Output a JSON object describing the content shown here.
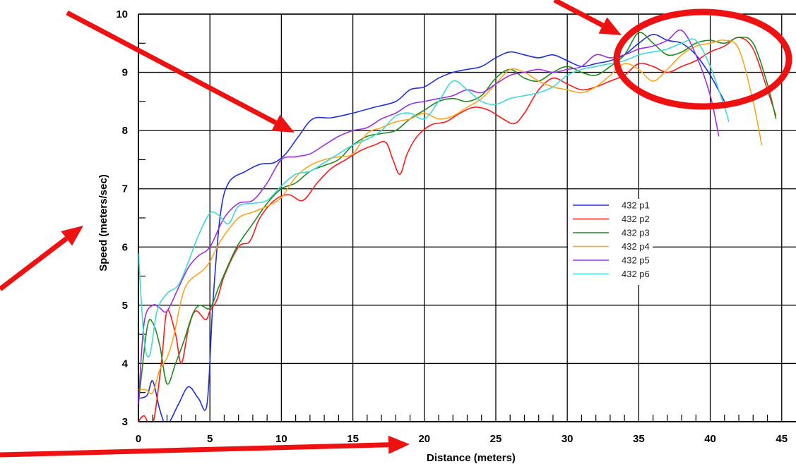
{
  "chart_data": {
    "type": "line",
    "title": "",
    "xlabel": "Distance (meters)",
    "ylabel": "Speed (meters/sec)",
    "xlim": [
      0,
      46
    ],
    "ylim": [
      3,
      10
    ],
    "x_ticks": [
      0,
      5,
      10,
      15,
      20,
      25,
      30,
      35,
      40,
      45
    ],
    "y_ticks": [
      3,
      4,
      5,
      6,
      7,
      8,
      9,
      10
    ],
    "grid": true,
    "legend_position": "center-right",
    "series": [
      {
        "name": "432 p1",
        "color": "#1f2fe0",
        "points": [
          [
            0,
            3.4
          ],
          [
            0.6,
            3.45
          ],
          [
            1,
            3.7
          ],
          [
            1.5,
            3.2
          ],
          [
            2,
            2.95
          ],
          [
            2.8,
            3.3
          ],
          [
            3.5,
            3.6
          ],
          [
            4.2,
            3.4
          ],
          [
            4.8,
            3.3
          ],
          [
            5.2,
            5.0
          ],
          [
            5.7,
            6.5
          ],
          [
            6.3,
            7.1
          ],
          [
            7.5,
            7.3
          ],
          [
            8.5,
            7.42
          ],
          [
            9.5,
            7.45
          ],
          [
            10.3,
            7.6
          ],
          [
            11.2,
            7.9
          ],
          [
            12.2,
            8.2
          ],
          [
            13.5,
            8.22
          ],
          [
            15,
            8.3
          ],
          [
            16.5,
            8.4
          ],
          [
            18,
            8.5
          ],
          [
            19,
            8.7
          ],
          [
            20,
            8.75
          ],
          [
            21,
            8.9
          ],
          [
            22,
            9.0
          ],
          [
            23,
            9.05
          ],
          [
            24,
            9.1
          ],
          [
            25,
            9.25
          ],
          [
            26,
            9.35
          ],
          [
            27,
            9.3
          ],
          [
            28,
            9.25
          ],
          [
            29,
            9.3
          ],
          [
            30,
            9.2
          ],
          [
            31,
            9.1
          ],
          [
            32,
            9.15
          ],
          [
            33,
            9.2
          ],
          [
            34,
            9.3
          ],
          [
            35,
            9.5
          ],
          [
            36,
            9.65
          ],
          [
            37,
            9.55
          ],
          [
            38,
            9.5
          ],
          [
            39,
            9.3
          ],
          [
            40,
            8.95
          ],
          [
            41,
            8.5
          ]
        ]
      },
      {
        "name": "432 p2",
        "color": "#ff1a1a",
        "points": [
          [
            0,
            3.0
          ],
          [
            0.4,
            3.1
          ],
          [
            1,
            2.95
          ],
          [
            1.6,
            4.0
          ],
          [
            2,
            4.9
          ],
          [
            2.6,
            4.5
          ],
          [
            3,
            4.0
          ],
          [
            3.5,
            4.6
          ],
          [
            4,
            4.9
          ],
          [
            4.7,
            4.75
          ],
          [
            5,
            4.9
          ],
          [
            5.5,
            5.1
          ],
          [
            6,
            5.5
          ],
          [
            7,
            6.0
          ],
          [
            7.8,
            6.1
          ],
          [
            8.5,
            6.5
          ],
          [
            9.5,
            6.8
          ],
          [
            10.5,
            6.9
          ],
          [
            11.5,
            6.8
          ],
          [
            12.5,
            7.1
          ],
          [
            13.5,
            7.35
          ],
          [
            14.5,
            7.5
          ],
          [
            15.5,
            7.65
          ],
          [
            16.5,
            7.75
          ],
          [
            17.3,
            7.8
          ],
          [
            17.8,
            7.5
          ],
          [
            18.3,
            7.25
          ],
          [
            18.8,
            7.6
          ],
          [
            19.5,
            7.9
          ],
          [
            20.5,
            8.1
          ],
          [
            21.5,
            8.15
          ],
          [
            22.5,
            8.3
          ],
          [
            23.5,
            8.4
          ],
          [
            24.5,
            8.35
          ],
          [
            25.5,
            8.2
          ],
          [
            26.3,
            8.12
          ],
          [
            27,
            8.3
          ],
          [
            28,
            8.7
          ],
          [
            29,
            8.9
          ],
          [
            30,
            8.8
          ],
          [
            31,
            8.7
          ],
          [
            32,
            8.75
          ],
          [
            33,
            8.85
          ],
          [
            34,
            8.95
          ],
          [
            35,
            9.15
          ],
          [
            36,
            9.1
          ],
          [
            37,
            9.0
          ],
          [
            38,
            9.1
          ],
          [
            39,
            9.2
          ],
          [
            40,
            9.35
          ],
          [
            41,
            9.45
          ],
          [
            42,
            9.6
          ],
          [
            43,
            9.4
          ],
          [
            44,
            8.7
          ],
          [
            44.6,
            8.25
          ]
        ]
      },
      {
        "name": "432 p3",
        "color": "#1e8c1e",
        "points": [
          [
            0,
            3.3
          ],
          [
            0.6,
            4.6
          ],
          [
            1,
            4.7
          ],
          [
            1.5,
            4.3
          ],
          [
            2,
            3.65
          ],
          [
            2.6,
            4.0
          ],
          [
            3.2,
            4.4
          ],
          [
            3.8,
            4.85
          ],
          [
            4.3,
            5.0
          ],
          [
            5,
            4.95
          ],
          [
            5.6,
            5.3
          ],
          [
            6.3,
            5.7
          ],
          [
            7,
            6.05
          ],
          [
            8,
            6.4
          ],
          [
            9,
            6.75
          ],
          [
            10,
            7.0
          ],
          [
            11,
            7.1
          ],
          [
            12,
            7.3
          ],
          [
            13,
            7.4
          ],
          [
            14,
            7.5
          ],
          [
            15,
            7.75
          ],
          [
            16,
            7.9
          ],
          [
            17,
            7.95
          ],
          [
            18,
            8.0
          ],
          [
            19,
            8.2
          ],
          [
            20,
            8.35
          ],
          [
            21,
            8.5
          ],
          [
            22,
            8.55
          ],
          [
            23,
            8.5
          ],
          [
            24,
            8.6
          ],
          [
            25,
            8.9
          ],
          [
            26,
            9.05
          ],
          [
            27,
            8.9
          ],
          [
            28,
            8.85
          ],
          [
            29,
            9.0
          ],
          [
            30,
            9.1
          ],
          [
            31,
            9.0
          ],
          [
            32,
            8.95
          ],
          [
            33,
            9.1
          ],
          [
            34,
            9.3
          ],
          [
            35,
            9.68
          ],
          [
            36,
            9.5
          ],
          [
            37,
            9.3
          ],
          [
            38,
            9.35
          ],
          [
            39,
            9.5
          ],
          [
            40,
            9.55
          ],
          [
            41,
            9.5
          ],
          [
            42,
            9.6
          ],
          [
            43,
            9.5
          ],
          [
            44,
            8.8
          ],
          [
            44.6,
            8.2
          ]
        ]
      },
      {
        "name": "432 p4",
        "color": "#ffa31a",
        "points": [
          [
            0,
            3.55
          ],
          [
            0.5,
            3.55
          ],
          [
            1,
            3.5
          ],
          [
            1.5,
            3.9
          ],
          [
            2,
            4.1
          ],
          [
            2.5,
            4.5
          ],
          [
            3,
            5.1
          ],
          [
            3.5,
            5.4
          ],
          [
            4.5,
            5.6
          ],
          [
            5,
            5.75
          ],
          [
            5.5,
            6.0
          ],
          [
            6,
            6.2
          ],
          [
            7,
            6.5
          ],
          [
            8,
            6.6
          ],
          [
            9,
            6.7
          ],
          [
            10,
            6.85
          ],
          [
            11,
            7.2
          ],
          [
            12,
            7.4
          ],
          [
            13,
            7.5
          ],
          [
            14,
            7.55
          ],
          [
            15,
            7.6
          ],
          [
            16,
            7.95
          ],
          [
            17,
            8.05
          ],
          [
            18,
            8.15
          ],
          [
            19,
            8.2
          ],
          [
            20,
            8.3
          ],
          [
            21,
            8.2
          ],
          [
            22,
            8.25
          ],
          [
            23,
            8.4
          ],
          [
            24,
            8.55
          ],
          [
            25,
            8.8
          ],
          [
            26,
            9.05
          ],
          [
            27,
            9.0
          ],
          [
            28,
            8.85
          ],
          [
            29,
            8.75
          ],
          [
            30,
            8.7
          ],
          [
            31,
            8.65
          ],
          [
            32,
            8.75
          ],
          [
            33,
            8.95
          ],
          [
            34,
            9.15
          ],
          [
            35,
            9.05
          ],
          [
            36,
            8.85
          ],
          [
            37,
            9.05
          ],
          [
            38,
            9.3
          ],
          [
            39,
            9.45
          ],
          [
            40,
            9.5
          ],
          [
            41,
            9.55
          ],
          [
            42,
            9.4
          ],
          [
            43,
            8.5
          ],
          [
            43.6,
            7.75
          ]
        ]
      },
      {
        "name": "432 p5",
        "color": "#9b30e0",
        "points": [
          [
            0,
            3.3
          ],
          [
            0.4,
            4.7
          ],
          [
            1,
            5.0
          ],
          [
            1.5,
            4.95
          ],
          [
            2,
            4.9
          ],
          [
            2.8,
            5.3
          ],
          [
            3.5,
            5.65
          ],
          [
            4.2,
            5.85
          ],
          [
            5,
            6.0
          ],
          [
            6,
            6.5
          ],
          [
            7,
            6.75
          ],
          [
            8,
            6.8
          ],
          [
            9,
            7.1
          ],
          [
            10,
            7.5
          ],
          [
            11,
            7.55
          ],
          [
            12,
            7.6
          ],
          [
            13,
            7.75
          ],
          [
            14,
            7.9
          ],
          [
            15,
            8.0
          ],
          [
            16,
            8.05
          ],
          [
            17,
            8.2
          ],
          [
            18,
            8.3
          ],
          [
            19,
            8.45
          ],
          [
            20,
            8.5
          ],
          [
            21,
            8.55
          ],
          [
            22,
            8.6
          ],
          [
            23,
            8.7
          ],
          [
            24,
            8.65
          ],
          [
            25,
            8.8
          ],
          [
            26,
            8.95
          ],
          [
            27,
            9.0
          ],
          [
            28,
            9.05
          ],
          [
            29,
            9.0
          ],
          [
            30,
            9.05
          ],
          [
            31,
            9.1
          ],
          [
            32,
            9.3
          ],
          [
            33,
            9.25
          ],
          [
            34,
            9.3
          ],
          [
            35,
            9.4
          ],
          [
            36,
            9.45
          ],
          [
            37,
            9.55
          ],
          [
            38,
            9.72
          ],
          [
            39,
            9.3
          ],
          [
            40,
            8.6
          ],
          [
            40.6,
            7.9
          ]
        ]
      },
      {
        "name": "432 p6",
        "color": "#3fd8d8",
        "points": [
          [
            0,
            5.9
          ],
          [
            0.4,
            4.4
          ],
          [
            0.8,
            4.15
          ],
          [
            1.3,
            4.9
          ],
          [
            2,
            5.2
          ],
          [
            2.8,
            5.35
          ],
          [
            3.5,
            5.75
          ],
          [
            4.2,
            6.2
          ],
          [
            5,
            6.58
          ],
          [
            5.6,
            6.55
          ],
          [
            6.3,
            6.4
          ],
          [
            7,
            6.7
          ],
          [
            8,
            6.75
          ],
          [
            9,
            6.8
          ],
          [
            10,
            7.05
          ],
          [
            11,
            7.25
          ],
          [
            12,
            7.3
          ],
          [
            13,
            7.45
          ],
          [
            14,
            7.6
          ],
          [
            15,
            7.75
          ],
          [
            16,
            7.85
          ],
          [
            17,
            8.0
          ],
          [
            18,
            8.25
          ],
          [
            19,
            8.3
          ],
          [
            20,
            8.2
          ],
          [
            21,
            8.5
          ],
          [
            22,
            8.85
          ],
          [
            23,
            8.7
          ],
          [
            24,
            8.5
          ],
          [
            25,
            8.45
          ],
          [
            26,
            8.55
          ],
          [
            27,
            8.6
          ],
          [
            28,
            8.65
          ],
          [
            29,
            8.75
          ],
          [
            30,
            8.95
          ],
          [
            31,
            9.05
          ],
          [
            32,
            9.1
          ],
          [
            33,
            9.15
          ],
          [
            34,
            9.2
          ],
          [
            35,
            9.3
          ],
          [
            36,
            9.35
          ],
          [
            37,
            9.4
          ],
          [
            38,
            9.5
          ],
          [
            39,
            9.55
          ],
          [
            40,
            9.1
          ],
          [
            41,
            8.4
          ],
          [
            41.3,
            8.15
          ]
        ]
      }
    ]
  },
  "annotations": {
    "arrow_color": "#ee1111",
    "highlight_color": "#ee1111"
  }
}
